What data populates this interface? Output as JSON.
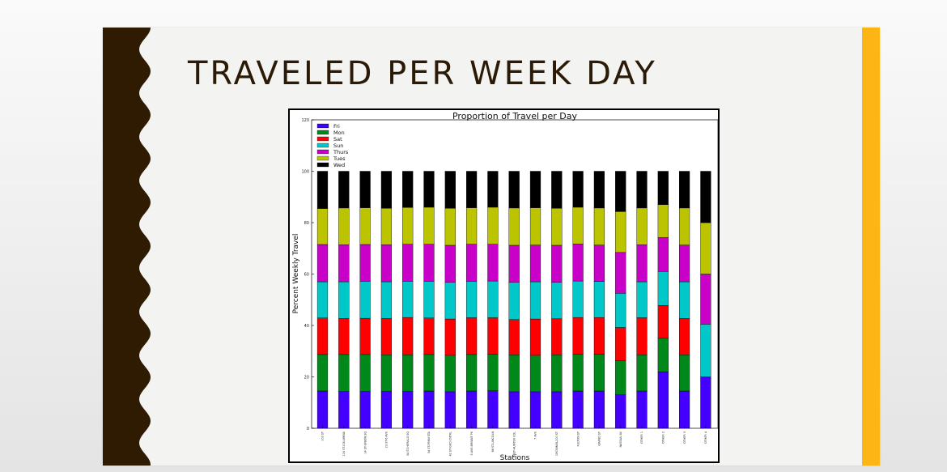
{
  "slide": {
    "title": "TRAVELED PER WEEK DAY",
    "colors": {
      "band": "#2e1b02",
      "accent": "#fdb515",
      "background": "#f3f3f2"
    }
  },
  "chart_data": {
    "type": "bar",
    "stacked": true,
    "title": "Proportion of Travel per Day",
    "xlabel": "Stations",
    "ylabel": "Percent Weekly Travel",
    "ylim": [
      0,
      120
    ],
    "yticks": [
      0,
      20,
      40,
      60,
      80,
      100,
      120
    ],
    "grid": false,
    "legend_position": "top-left",
    "categories": [
      "103 ST",
      "116 ST-COLUMBIA",
      "14 ST-UNION SQ",
      "23 ST-6 AVE",
      "34 ST-HERALD SQ",
      "34 ST-PENN STA",
      "42 ST-GRD CNTRL",
      "5 AVE-BRYANT PK",
      "66 ST-LINCOLN",
      "68ST-HUNTER COL",
      "7 AVE",
      "DYCKMAN-200 ST",
      "FULTON ST",
      "GRAND ST",
      "NASSAU AV",
      "OTHER 1",
      "OTHER 2",
      "OTHER 3",
      "OTHER 4"
    ],
    "series": [
      {
        "name": "Fri",
        "color": "#4400ff",
        "values": [
          14.5,
          14.3,
          14.3,
          14.3,
          14.3,
          14.5,
          14.2,
          14.5,
          14.6,
          14.2,
          14.2,
          14.2,
          14.5,
          14.5,
          13.0,
          14.5,
          22.0,
          14.5,
          20.0
        ]
      },
      {
        "name": "Mon",
        "color": "#00881b",
        "values": [
          14.2,
          14.4,
          14.4,
          14.3,
          14.3,
          14.2,
          14.2,
          14.2,
          14.2,
          14.4,
          14.2,
          14.4,
          14.3,
          14.3,
          13.2,
          14.1,
          13.0,
          14.1,
          0
        ]
      },
      {
        "name": "Sat",
        "color": "#ff0000",
        "values": [
          14.2,
          14.0,
          14.1,
          14.1,
          14.5,
          14.2,
          14.1,
          14.3,
          14.2,
          13.7,
          14.1,
          14.0,
          14.3,
          14.3,
          13.0,
          14.4,
          12.8,
          14.1,
          0
        ]
      },
      {
        "name": "Sun",
        "color": "#00c8c8",
        "values": [
          14.1,
          14.3,
          14.4,
          14.3,
          14.1,
          14.3,
          14.3,
          14.2,
          14.3,
          14.5,
          14.5,
          14.2,
          14.2,
          14.0,
          13.3,
          14.0,
          13.2,
          14.3,
          20.5
        ]
      },
      {
        "name": "Thurs",
        "color": "#c800c8",
        "values": [
          14.5,
          14.4,
          14.3,
          14.4,
          14.4,
          14.4,
          14.4,
          14.4,
          14.3,
          14.4,
          14.3,
          14.4,
          14.4,
          14.2,
          15.9,
          14.4,
          13.2,
          14.3,
          19.5
        ]
      },
      {
        "name": "Tues",
        "color": "#bcc400",
        "values": [
          14.0,
          14.3,
          14.3,
          14.2,
          14.3,
          14.4,
          14.4,
          14.2,
          14.4,
          14.5,
          14.5,
          14.4,
          14.3,
          14.4,
          15.9,
          14.3,
          12.8,
          14.4,
          20.0
        ]
      },
      {
        "name": "Wed",
        "color": "#000000",
        "values": [
          14.5,
          14.3,
          14.2,
          14.4,
          14.1,
          14.0,
          14.4,
          14.2,
          14.0,
          14.3,
          14.2,
          14.4,
          14.0,
          14.3,
          15.7,
          14.3,
          13.0,
          14.3,
          20.0
        ]
      }
    ]
  }
}
